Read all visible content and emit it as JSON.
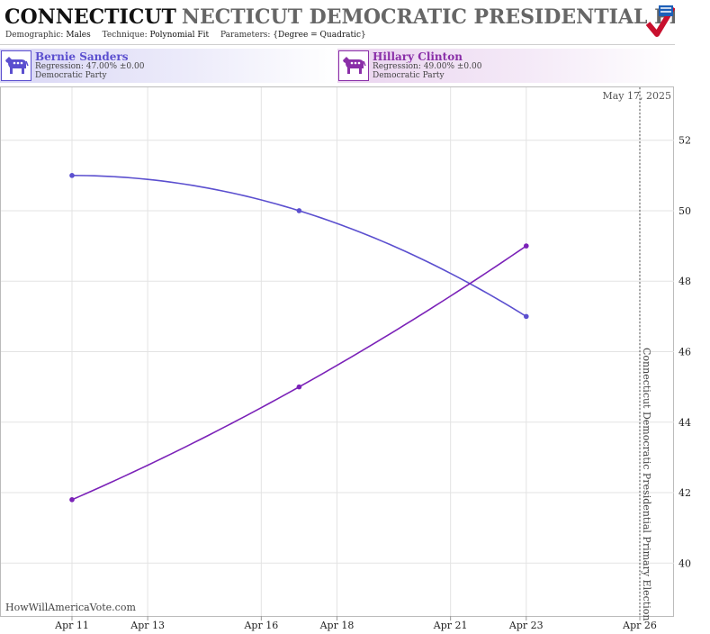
{
  "header": {
    "title_bold": "CONNECTICUT",
    "title_rest": "NECTICUT DEMOCRATIC PRESIDENTIAL PRIMAR",
    "demographic_label": "Demographic:",
    "demographic_value": "Males",
    "technique_label": "Technique:",
    "technique_value": "Polynomial Fit",
    "parameters_label": "Parameters:",
    "parameters_value": "{Degree = Quadratic}",
    "logo_icon": "flag-check-logo-icon"
  },
  "candidates": [
    {
      "name": "Bernie Sanders",
      "regression": "Regression: 47.00% ±0.00",
      "party": "Democratic Party",
      "color": "#5b4fcf",
      "icon": "donkey-icon"
    },
    {
      "name": "Hillary Clinton",
      "regression": "Regression: 49.00% ±0.00",
      "party": "Democratic Party",
      "color": "#8a2fa8",
      "icon": "donkey-icon"
    }
  ],
  "date_stamp": "May 17, 2025",
  "watermark": "HowWillAmericaVote.com",
  "election_label": "Connecticut Democratic Presidential Primary Election",
  "chart_data": {
    "type": "line",
    "x_tick_labels": [
      "Apr 11",
      "Apr 13",
      "Apr 16",
      "Apr 18",
      "Apr 21",
      "Apr 23",
      "Apr 26"
    ],
    "x_tick_dates": [
      "2016-04-11",
      "2016-04-13",
      "2016-04-16",
      "2016-04-18",
      "2016-04-21",
      "2016-04-23",
      "2016-04-26"
    ],
    "y_ticks": [
      40,
      42,
      44,
      46,
      48,
      50,
      52
    ],
    "ylim": [
      38.5,
      53.5
    ],
    "xlim": [
      "2016-04-11",
      "2016-04-26"
    ],
    "grid": true,
    "election_date": "2016-04-26",
    "series": [
      {
        "name": "Bernie Sanders",
        "color": "#5b4fcf",
        "points": [
          {
            "x": "2016-04-11",
            "y": 51.0
          },
          {
            "x": "2016-04-17",
            "y": 50.0
          },
          {
            "x": "2016-04-23",
            "y": 47.0
          }
        ]
      },
      {
        "name": "Hillary Clinton",
        "color": "#7b22b8",
        "points": [
          {
            "x": "2016-04-11",
            "y": 41.8
          },
          {
            "x": "2016-04-17",
            "y": 45.0
          },
          {
            "x": "2016-04-23",
            "y": 49.0
          }
        ]
      }
    ]
  }
}
